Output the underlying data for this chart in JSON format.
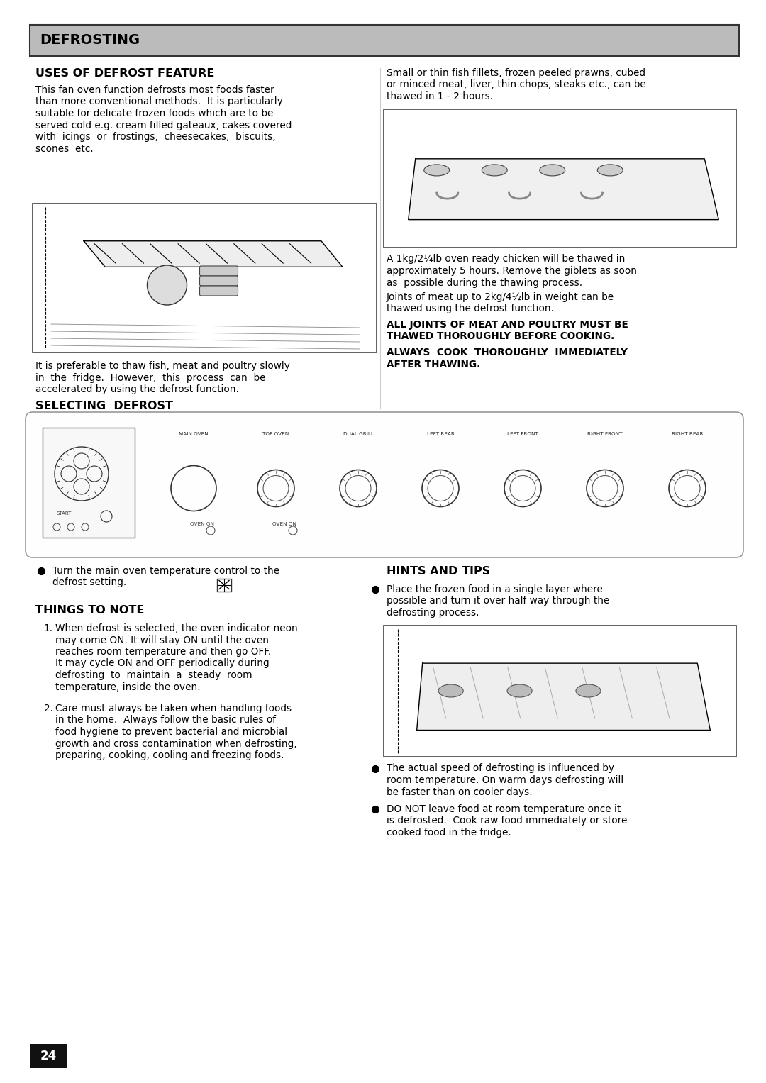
{
  "page_number": "24",
  "bg_color": "#ffffff",
  "header_bg": "#b8b8b8",
  "header_text": "DEFROSTING",
  "header_text_color": "#000000",
  "section1_title": "USES OF DEFROST FEATURE",
  "section1_body_lines": [
    "This fan oven function defrosts most foods faster",
    "than more conventional methods.  It is particularly",
    "suitable for delicate frozen foods which are to be",
    "served cold e.g. cream filled gateaux, cakes covered",
    "with  icings  or  frostings,  cheesecakes,  biscuits,",
    "scones  etc."
  ],
  "section1_caption_lines": [
    "It is preferable to thaw fish, meat and poultry slowly",
    "in  the  fridge.  However,  this  process  can  be",
    "accelerated by using the defrost function."
  ],
  "right_col_body1_lines": [
    "Small or thin fish fillets, frozen peeled prawns, cubed",
    "or minced meat, liver, thin chops, steaks etc., can be",
    "thawed in 1 - 2 hours."
  ],
  "right_col_body2_lines": [
    "A 1kg/2¼lb oven ready chicken will be thawed in",
    "approximately 5 hours. Remove the giblets as soon",
    "as  possible during the thawing process."
  ],
  "right_col_body3_lines": [
    "Joints of meat up to 2kg/4½lb in weight can be",
    "thawed using the defrost function."
  ],
  "right_col_bold1_lines": [
    "ALL JOINTS OF MEAT AND POULTRY MUST BE",
    "THAWED THOROUGHLY BEFORE COOKING."
  ],
  "right_col_bold2_lines": [
    "ALWAYS  COOK  THOROUGHLY  IMMEDIATELY",
    "AFTER THAWING."
  ],
  "section2_title": "SELECTING  DEFROST",
  "bullet1_lines": [
    "Turn the main oven temperature control to the",
    "defrost setting."
  ],
  "section3_title": "THINGS TO NOTE",
  "note1_lines": [
    "When defrost is selected, the oven indicator neon",
    "may come ON. It will stay ON until the oven",
    "reaches room temperature and then go OFF.",
    "It may cycle ON and OFF periodically during",
    "defrosting  to  maintain  a  steady  room",
    "temperature, inside the oven."
  ],
  "note2_lines": [
    "Care must always be taken when handling foods",
    "in the home.  Always follow the basic rules of",
    "food hygiene to prevent bacterial and microbial",
    "growth and cross contamination when defrosting,",
    "preparing, cooking, cooling and freezing foods."
  ],
  "section4_title": "HINTS AND TIPS",
  "hint1_lines": [
    "Place the frozen food in a single layer where",
    "possible and turn it over half way through the",
    "defrosting process."
  ],
  "hint2_lines": [
    "The actual speed of defrosting is influenced by",
    "room temperature. On warm days defrosting will",
    "be faster than on cooler days."
  ],
  "hint3_lines": [
    "DO NOT leave food at room temperature once it",
    "is defrosted.  Cook raw food immediately or store",
    "cooked food in the fridge."
  ],
  "dial_labels": [
    "MAIN OVEN",
    "TOP OVEN",
    "DUAL GRILL",
    "LEFT REAR",
    "LEFT FRONT",
    "RIGHT FRONT",
    "RIGHT REAR"
  ],
  "text_color": "#000000",
  "border_color": "#000000",
  "panel_border": "#888888"
}
